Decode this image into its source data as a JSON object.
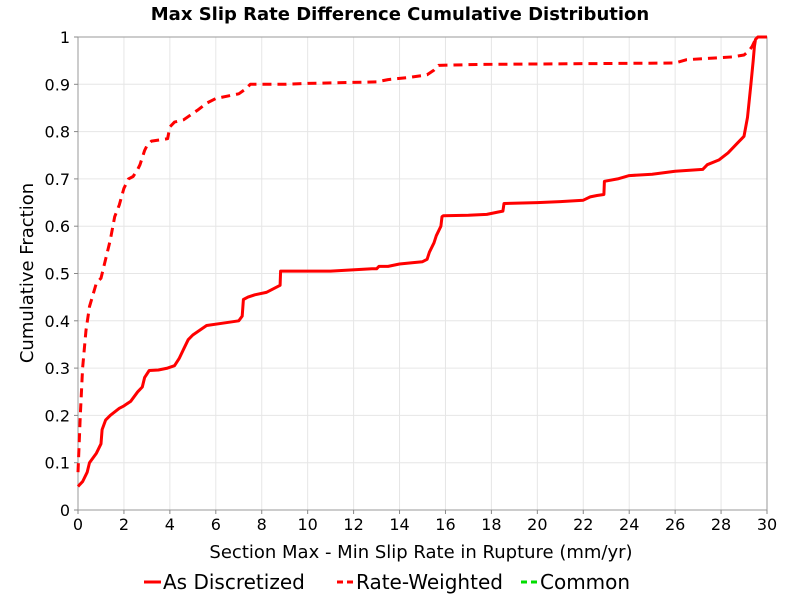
{
  "chart_data": {
    "type": "line",
    "title": "Max Slip Rate Difference Cumulative Distribution",
    "xlabel": "Section Max - Min Slip Rate in Rupture (mm/yr)",
    "ylabel": "Cumulative Fraction",
    "xlim": [
      0,
      30
    ],
    "ylim": [
      0,
      1
    ],
    "xticks": [
      0,
      2,
      4,
      6,
      8,
      10,
      12,
      14,
      16,
      18,
      20,
      22,
      24,
      26,
      28,
      30
    ],
    "yticks": [
      0,
      0.1,
      0.2,
      0.3,
      0.4,
      0.5,
      0.6,
      0.7,
      0.8,
      0.9,
      1
    ],
    "grid": true,
    "legend_position": "bottom",
    "series": [
      {
        "name": "As Discretized",
        "color": "#ff0000",
        "dash": "solid",
        "points": [
          [
            0,
            0.05
          ],
          [
            0.2,
            0.06
          ],
          [
            0.4,
            0.08
          ],
          [
            0.5,
            0.1
          ],
          [
            0.8,
            0.12
          ],
          [
            1.0,
            0.14
          ],
          [
            1.05,
            0.17
          ],
          [
            1.2,
            0.19
          ],
          [
            1.4,
            0.2
          ],
          [
            1.8,
            0.215
          ],
          [
            2.0,
            0.22
          ],
          [
            2.3,
            0.23
          ],
          [
            2.6,
            0.25
          ],
          [
            2.8,
            0.26
          ],
          [
            2.9,
            0.28
          ],
          [
            3.1,
            0.295
          ],
          [
            3.5,
            0.296
          ],
          [
            3.9,
            0.3
          ],
          [
            4.2,
            0.305
          ],
          [
            4.4,
            0.32
          ],
          [
            4.6,
            0.34
          ],
          [
            4.8,
            0.36
          ],
          [
            5.0,
            0.37
          ],
          [
            5.3,
            0.38
          ],
          [
            5.6,
            0.39
          ],
          [
            6.3,
            0.395
          ],
          [
            7.0,
            0.4
          ],
          [
            7.15,
            0.41
          ],
          [
            7.2,
            0.445
          ],
          [
            7.4,
            0.45
          ],
          [
            7.7,
            0.455
          ],
          [
            8.2,
            0.46
          ],
          [
            8.6,
            0.47
          ],
          [
            8.8,
            0.475
          ],
          [
            8.82,
            0.505
          ],
          [
            11.0,
            0.505
          ],
          [
            12.8,
            0.51
          ],
          [
            13.0,
            0.51
          ],
          [
            13.1,
            0.515
          ],
          [
            13.5,
            0.515
          ],
          [
            14.0,
            0.52
          ],
          [
            14.6,
            0.523
          ],
          [
            15.0,
            0.525
          ],
          [
            15.2,
            0.53
          ],
          [
            15.3,
            0.545
          ],
          [
            15.5,
            0.565
          ],
          [
            15.6,
            0.58
          ],
          [
            15.8,
            0.6
          ],
          [
            15.85,
            0.62
          ],
          [
            15.9,
            0.622
          ],
          [
            17.0,
            0.623
          ],
          [
            17.8,
            0.625
          ],
          [
            18.3,
            0.63
          ],
          [
            18.5,
            0.632
          ],
          [
            18.55,
            0.648
          ],
          [
            20.0,
            0.65
          ],
          [
            21.0,
            0.652
          ],
          [
            22.0,
            0.655
          ],
          [
            22.3,
            0.662
          ],
          [
            22.6,
            0.665
          ],
          [
            22.9,
            0.667
          ],
          [
            22.92,
            0.695
          ],
          [
            23.5,
            0.7
          ],
          [
            24.0,
            0.707
          ],
          [
            25.0,
            0.71
          ],
          [
            26.0,
            0.716
          ],
          [
            27.2,
            0.72
          ],
          [
            27.4,
            0.73
          ],
          [
            27.9,
            0.74
          ],
          [
            28.3,
            0.755
          ],
          [
            28.7,
            0.775
          ],
          [
            29.0,
            0.79
          ],
          [
            29.15,
            0.83
          ],
          [
            29.3,
            0.9
          ],
          [
            29.4,
            0.95
          ],
          [
            29.45,
            0.98
          ],
          [
            29.5,
            0.995
          ],
          [
            29.6,
            1.0
          ],
          [
            30,
            1.0
          ]
        ]
      },
      {
        "name": "Rate-Weighted",
        "color": "#ff0000",
        "dash": "dashed",
        "points": [
          [
            0,
            0.08
          ],
          [
            0.1,
            0.2
          ],
          [
            0.2,
            0.3
          ],
          [
            0.35,
            0.38
          ],
          [
            0.5,
            0.43
          ],
          [
            0.8,
            0.48
          ],
          [
            1.0,
            0.49
          ],
          [
            1.2,
            0.53
          ],
          [
            1.4,
            0.57
          ],
          [
            1.6,
            0.62
          ],
          [
            1.8,
            0.645
          ],
          [
            2.0,
            0.68
          ],
          [
            2.2,
            0.7
          ],
          [
            2.4,
            0.705
          ],
          [
            2.6,
            0.72
          ],
          [
            2.7,
            0.73
          ],
          [
            2.9,
            0.76
          ],
          [
            3.0,
            0.77
          ],
          [
            3.2,
            0.78
          ],
          [
            3.9,
            0.785
          ],
          [
            4.0,
            0.81
          ],
          [
            4.2,
            0.82
          ],
          [
            4.6,
            0.825
          ],
          [
            4.9,
            0.835
          ],
          [
            5.2,
            0.845
          ],
          [
            5.6,
            0.86
          ],
          [
            6.0,
            0.87
          ],
          [
            7.0,
            0.88
          ],
          [
            7.3,
            0.89
          ],
          [
            7.5,
            0.9
          ],
          [
            9.0,
            0.9
          ],
          [
            10.0,
            0.902
          ],
          [
            13.0,
            0.905
          ],
          [
            13.5,
            0.91
          ],
          [
            14.5,
            0.915
          ],
          [
            15.2,
            0.92
          ],
          [
            15.5,
            0.93
          ],
          [
            15.7,
            0.94
          ],
          [
            17.5,
            0.942
          ],
          [
            20.0,
            0.943
          ],
          [
            26.0,
            0.945
          ],
          [
            26.5,
            0.952
          ],
          [
            28.5,
            0.958
          ],
          [
            29.0,
            0.962
          ],
          [
            29.2,
            0.97
          ],
          [
            29.35,
            0.98
          ],
          [
            29.5,
            0.995
          ],
          [
            29.6,
            1.0
          ],
          [
            30,
            1.0
          ]
        ]
      },
      {
        "name": "Common",
        "color": "#00dd00",
        "dash": "dashed",
        "points": []
      }
    ]
  }
}
